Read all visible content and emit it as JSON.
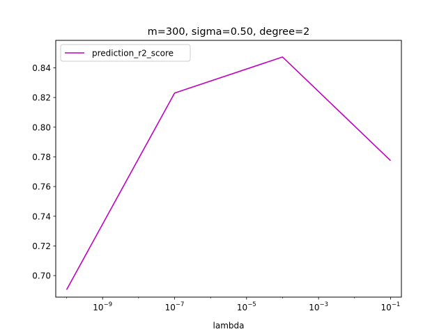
{
  "chart_data": {
    "type": "line",
    "title": "m=300, sigma=0.50, degree=2",
    "xlabel": "lambda",
    "ylabel": "",
    "xscale": "log",
    "xlim": [
      5e-11,
      0.2
    ],
    "ylim": [
      0.6855,
      0.8585
    ],
    "grid": false,
    "legend_position": "top-left",
    "x_ticks": [
      {
        "value": 1e-09,
        "base": "10",
        "exp": "−9"
      },
      {
        "value": 1e-07,
        "base": "10",
        "exp": "−7"
      },
      {
        "value": 1e-05,
        "base": "10",
        "exp": "−5"
      },
      {
        "value": 0.001,
        "base": "10",
        "exp": "−3"
      },
      {
        "value": 0.1,
        "base": "10",
        "exp": "−1"
      }
    ],
    "y_ticks": [
      {
        "value": 0.7,
        "label": "0.70"
      },
      {
        "value": 0.72,
        "label": "0.72"
      },
      {
        "value": 0.74,
        "label": "0.74"
      },
      {
        "value": 0.76,
        "label": "0.76"
      },
      {
        "value": 0.78,
        "label": "0.78"
      },
      {
        "value": 0.8,
        "label": "0.80"
      },
      {
        "value": 0.82,
        "label": "0.82"
      },
      {
        "value": 0.84,
        "label": "0.84"
      }
    ],
    "series": [
      {
        "name": "prediction_r2_score",
        "color": "#bf00bf",
        "x": [
          1e-10,
          1e-07,
          0.0001,
          0.1
        ],
        "y": [
          0.6905,
          0.823,
          0.8473,
          0.7775
        ]
      }
    ]
  }
}
